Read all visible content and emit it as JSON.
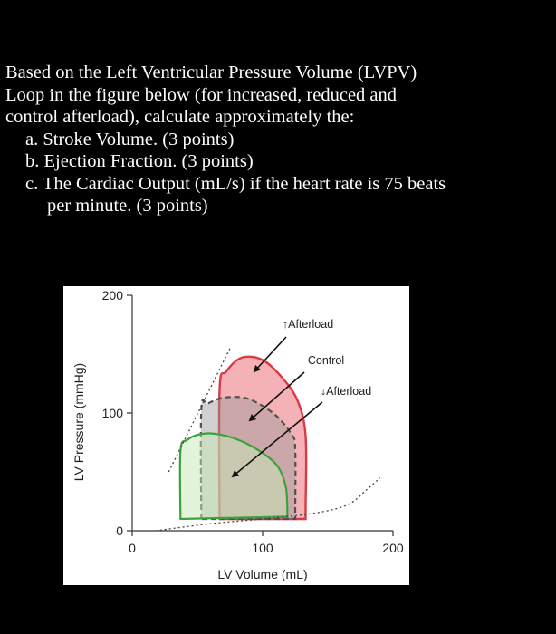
{
  "question": {
    "intro_line1": "Based on the Left Ventricular Pressure Volume (LVPV)",
    "intro_line2": "Loop in the figure below (for increased, reduced and",
    "intro_line3": "control afterload), calculate approximately the:",
    "item_a": "a. Stroke Volume. (3 points)",
    "item_b": "b. Ejection Fraction. (3 points)",
    "item_c_line1": "c. The Cardiac Output (mL/s) if the heart rate is 75 beats",
    "item_c_line2": "per minute. (3 points)"
  },
  "chart_data": {
    "type": "area",
    "xlabel": "LV Volume (mL)",
    "ylabel": "LV Pressure (mmHg)",
    "xlim": [
      0,
      200
    ],
    "ylim": [
      0,
      200
    ],
    "x_ticks": [
      0,
      100,
      200
    ],
    "y_ticks": [
      0,
      100,
      200
    ],
    "colors": {
      "increased_afterload": "#d93a45",
      "control": "#6e6e6e",
      "reduced_afterload": "#3aa23a"
    },
    "annotations": [
      {
        "text": "↑Afterload",
        "series": "increased_afterload"
      },
      {
        "text": "Control",
        "series": "control"
      },
      {
        "text": "↓Afterload",
        "series": "reduced_afterload"
      }
    ],
    "series": [
      {
        "key": "increased_afterload",
        "points": [
          [
            67,
            10
          ],
          [
            67,
            120
          ],
          [
            72,
            135
          ],
          [
            84,
            147
          ],
          [
            100,
            145
          ],
          [
            115,
            130
          ],
          [
            127,
            110
          ],
          [
            133,
            80
          ],
          [
            133,
            20
          ],
          [
            133,
            10
          ]
        ]
      },
      {
        "key": "control",
        "points": [
          [
            53,
            10
          ],
          [
            53,
            103
          ],
          [
            58,
            108
          ],
          [
            70,
            113
          ],
          [
            86,
            113
          ],
          [
            100,
            106
          ],
          [
            112,
            96
          ],
          [
            122,
            82
          ],
          [
            125,
            70
          ],
          [
            125,
            10
          ]
        ]
      },
      {
        "key": "reduced_afterload",
        "points": [
          [
            37,
            10
          ],
          [
            37,
            68
          ],
          [
            42,
            77
          ],
          [
            52,
            82
          ],
          [
            66,
            82
          ],
          [
            84,
            76
          ],
          [
            100,
            66
          ],
          [
            112,
            54
          ],
          [
            118,
            36
          ],
          [
            119,
            12
          ]
        ]
      }
    ],
    "espvr": [
      [
        28,
        50
      ],
      [
        75,
        155
      ]
    ],
    "edpvr": [
      [
        18,
        0
      ],
      [
        60,
        6
      ],
      [
        100,
        10
      ],
      [
        140,
        15
      ],
      [
        165,
        22
      ],
      [
        180,
        35
      ],
      [
        190,
        45
      ]
    ]
  }
}
